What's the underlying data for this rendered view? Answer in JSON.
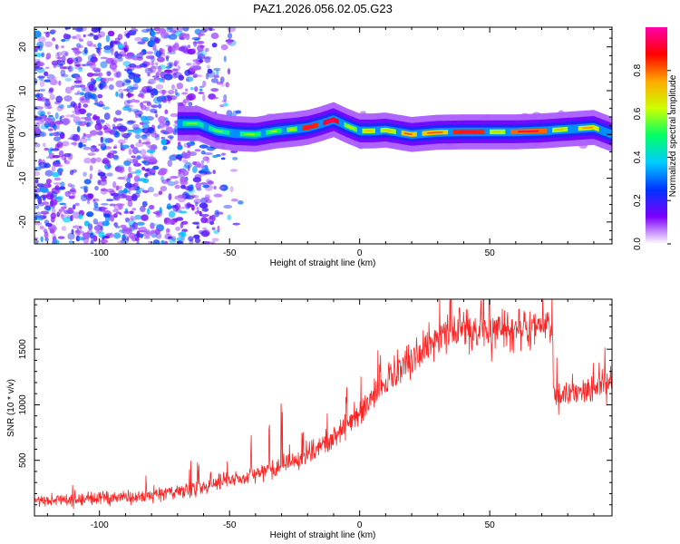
{
  "title": "PAZ1.2026.056.02.05.G23",
  "chart_data": [
    {
      "type": "heatmap",
      "xlabel": "Height of straight line (km)",
      "ylabel": "Frequency (Hz)",
      "xlim": [
        -125,
        97
      ],
      "ylim": [
        -25,
        24.5
      ],
      "xticks": [
        -100,
        -50,
        0,
        50
      ],
      "yticks": [
        -20,
        -10,
        0,
        10,
        20
      ],
      "ridge": {
        "x": [
          -70,
          -62,
          -55,
          -48,
          -40,
          -32,
          -25,
          -20,
          -15,
          -10,
          -5,
          0,
          5,
          10,
          15,
          20,
          30,
          40,
          50,
          60,
          70,
          80,
          90,
          97
        ],
        "y": [
          2.5,
          2.5,
          0.8,
          0.2,
          0.0,
          0.8,
          1.2,
          1.6,
          2.4,
          3.4,
          2.0,
          0.8,
          0.8,
          1.0,
          0.5,
          0.0,
          0.5,
          0.6,
          0.6,
          0.6,
          0.8,
          1.2,
          1.6,
          0.0
        ]
      },
      "scatter_region": {
        "xmin": -125,
        "xmax": -45,
        "ymin": -25,
        "ymax": 24.5
      }
    },
    {
      "type": "line",
      "series_name": "SNR",
      "xlabel": "Height of straight line (km)",
      "ylabel": "SNR (10 * v/v)",
      "xlim": [
        -125,
        97
      ],
      "ylim": [
        0,
        1950
      ],
      "xticks": [
        -100,
        -50,
        0,
        50
      ],
      "yticks": [
        500,
        1000,
        1500
      ],
      "trend": {
        "x": [
          -125,
          -100,
          -80,
          -65,
          -55,
          -45,
          -35,
          -25,
          -15,
          -5,
          5,
          15,
          25,
          35,
          45,
          55,
          65,
          74,
          74.5,
          85,
          97
        ],
        "y": [
          140,
          160,
          180,
          230,
          290,
          350,
          420,
          500,
          620,
          800,
          1070,
          1320,
          1520,
          1640,
          1700,
          1700,
          1700,
          1690,
          1130,
          1120,
          1200
        ]
      }
    }
  ],
  "colorbar": {
    "label": "Normalized spectral amplitude",
    "range": [
      0,
      1
    ],
    "ticks": [
      "0.0",
      "0.2",
      "0.4",
      "0.6",
      "0.8"
    ],
    "colors": [
      "#ffffff",
      "#7d00ff",
      "#0033ff",
      "#00ccff",
      "#00ff66",
      "#ccff00",
      "#ffaa00",
      "#ff0000",
      "#ff00aa"
    ]
  },
  "styles": {
    "line_color": "#ff2222",
    "axis_color": "#000000"
  }
}
